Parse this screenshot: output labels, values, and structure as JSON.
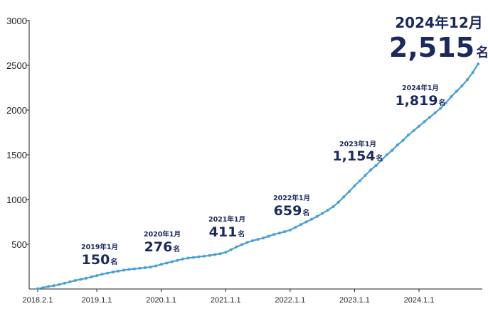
{
  "colors": {
    "line": "#4a9fd4",
    "axis": "#222222",
    "annotation": "#1b2a5e"
  },
  "chart_data": {
    "type": "line",
    "title": "",
    "xlabel": "",
    "ylabel": "",
    "ylim": [
      0,
      3000
    ],
    "y_ticks": [
      500,
      1000,
      1500,
      2000,
      2500,
      3000
    ],
    "x_ticks": [
      {
        "date": "2018-02",
        "label": "2018.2.1"
      },
      {
        "date": "2019-01",
        "label": "2019.1.1"
      },
      {
        "date": "2020-01",
        "label": "2020.1.1"
      },
      {
        "date": "2021-01",
        "label": "2021.1.1"
      },
      {
        "date": "2022-01",
        "label": "2022.1.1"
      },
      {
        "date": "2023-01",
        "label": "2023.1.1"
      },
      {
        "date": "2024-01",
        "label": "2024.1.1"
      }
    ],
    "grid": false,
    "series": [
      {
        "x": [
          "2018-02",
          "2018-03",
          "2018-04",
          "2018-05",
          "2018-06",
          "2018-07",
          "2018-08",
          "2018-09",
          "2018-10",
          "2018-11",
          "2018-12",
          "2019-01",
          "2019-02",
          "2019-03",
          "2019-04",
          "2019-05",
          "2019-06",
          "2019-07",
          "2019-08",
          "2019-09",
          "2019-10",
          "2019-11",
          "2019-12",
          "2020-01",
          "2020-02",
          "2020-03",
          "2020-04",
          "2020-05",
          "2020-06",
          "2020-07",
          "2020-08",
          "2020-09",
          "2020-10",
          "2020-11",
          "2020-12",
          "2021-01",
          "2021-02",
          "2021-03",
          "2021-04",
          "2021-05",
          "2021-06",
          "2021-07",
          "2021-08",
          "2021-09",
          "2021-10",
          "2021-11",
          "2021-12",
          "2022-01",
          "2022-02",
          "2022-03",
          "2022-04",
          "2022-05",
          "2022-06",
          "2022-07",
          "2022-08",
          "2022-09",
          "2022-10",
          "2022-11",
          "2022-12",
          "2023-01",
          "2023-02",
          "2023-03",
          "2023-04",
          "2023-05",
          "2023-06",
          "2023-07",
          "2023-08",
          "2023-09",
          "2023-10",
          "2023-11",
          "2023-12",
          "2024-01",
          "2024-02",
          "2024-03",
          "2024-04",
          "2024-05",
          "2024-06",
          "2024-07",
          "2024-08",
          "2024-09",
          "2024-10",
          "2024-11",
          "2024-12"
        ],
        "values": [
          3,
          15,
          28,
          38,
          50,
          65,
          80,
          95,
          108,
          120,
          135,
          150,
          165,
          178,
          190,
          200,
          210,
          218,
          225,
          232,
          238,
          245,
          258,
          276,
          290,
          305,
          320,
          335,
          345,
          352,
          360,
          367,
          375,
          385,
          395,
          411,
          440,
          470,
          495,
          520,
          540,
          555,
          570,
          590,
          610,
          625,
          642,
          659,
          690,
          720,
          750,
          780,
          810,
          845,
          880,
          920,
          970,
          1030,
          1090,
          1154,
          1210,
          1270,
          1330,
          1380,
          1440,
          1500,
          1550,
          1610,
          1660,
          1720,
          1770,
          1819,
          1870,
          1920,
          1970,
          2020,
          2080,
          2150,
          2210,
          2270,
          2340,
          2420,
          2515
        ]
      }
    ],
    "annotations": [
      {
        "date": "2019年1月",
        "value": "150",
        "unit": "名"
      },
      {
        "date": "2020年1月",
        "value": "276",
        "unit": "名"
      },
      {
        "date": "2021年1月",
        "value": "411",
        "unit": "名"
      },
      {
        "date": "2022年1月",
        "value": "659",
        "unit": "名"
      },
      {
        "date": "2023年1月",
        "value": "1,154",
        "unit": "名"
      },
      {
        "date": "2024年1月",
        "value": "1,819",
        "unit": "名"
      },
      {
        "date": "2024年12月",
        "value": "2,515",
        "unit": "名"
      }
    ]
  }
}
